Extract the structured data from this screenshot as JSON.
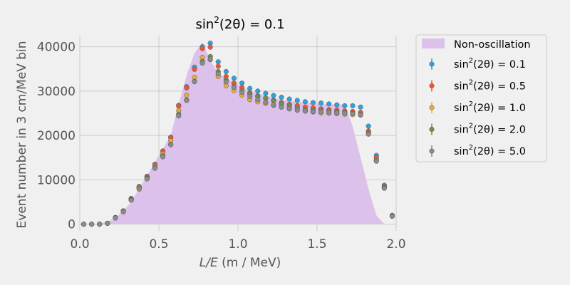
{
  "chart_data": {
    "type": "scatter",
    "title_main": "sin",
    "title_sup": "2",
    "title_rest": "(2θ) = 0.1",
    "xlabel_var": "L/E",
    "xlabel_unit": " (m / MeV)",
    "ylabel": "Event number in 3 cm/MeV bin",
    "xlim": [
      0,
      2.0
    ],
    "ylim": [
      -1500,
      42500
    ],
    "x_ticks": [
      0.0,
      0.5,
      1.0,
      1.5,
      2.0
    ],
    "x_tick_labels": [
      "0.0",
      "0.5",
      "1.0",
      "1.5",
      "2.0"
    ],
    "y_ticks": [
      0,
      10000,
      20000,
      30000,
      40000
    ],
    "y_tick_labels": [
      "0",
      "10000",
      "20000",
      "30000",
      "40000"
    ],
    "grid": true,
    "legend_position": "outside-right",
    "x": [
      0.025,
      0.075,
      0.125,
      0.175,
      0.225,
      0.275,
      0.325,
      0.375,
      0.425,
      0.475,
      0.525,
      0.575,
      0.625,
      0.675,
      0.725,
      0.775,
      0.825,
      0.875,
      0.925,
      0.975,
      1.025,
      1.075,
      1.125,
      1.175,
      1.225,
      1.275,
      1.325,
      1.375,
      1.425,
      1.475,
      1.525,
      1.575,
      1.625,
      1.675,
      1.725,
      1.775,
      1.825,
      1.875,
      1.925,
      1.975
    ],
    "fill_series": {
      "name": "Non-oscillation",
      "color": "#dcc1ea",
      "values": [
        0,
        0,
        100,
        500,
        1500,
        3000,
        5000,
        8000,
        11000,
        14000,
        17000,
        20000,
        27000,
        33500,
        38500,
        41000,
        37000,
        34000,
        33000,
        32000,
        31000,
        30000,
        29500,
        29000,
        28500,
        28000,
        27800,
        27600,
        27400,
        27200,
        27000,
        27000,
        27000,
        27000,
        22000,
        15000,
        8000,
        2000,
        0,
        0
      ]
    },
    "series": [
      {
        "name_main": "sin",
        "name_sup": "2",
        "name_rest": "(2θ) = 0.1",
        "color": "#30a2da",
        "values": [
          0,
          0,
          0,
          200,
          1500,
          3000,
          5800,
          8500,
          10800,
          13500,
          16500,
          19600,
          26800,
          31000,
          35400,
          40000,
          40800,
          36600,
          34400,
          32900,
          31800,
          30600,
          30000,
          29500,
          29000,
          28600,
          28200,
          27900,
          27600,
          27400,
          27300,
          27100,
          26900,
          26700,
          26700,
          26400,
          22100,
          15500,
          8800,
          2000
        ]
      },
      {
        "name_main": "sin",
        "name_sup": "2",
        "name_rest": "(2θ) = 0.5",
        "color": "#fc4f30",
        "values": [
          0,
          0,
          0,
          200,
          1500,
          3000,
          5700,
          8400,
          10700,
          13400,
          16400,
          19500,
          26600,
          30700,
          34900,
          39600,
          39900,
          35600,
          33300,
          31800,
          30800,
          29600,
          28900,
          28400,
          27900,
          27400,
          27000,
          26700,
          26400,
          26200,
          26000,
          25800,
          25700,
          25500,
          25400,
          25200,
          21000,
          15000,
          8500,
          1900
        ]
      },
      {
        "name_main": "sin",
        "name_sup": "2",
        "name_rest": "(2θ) = 1.0",
        "color": "#e5ae38",
        "values": [
          0,
          0,
          0,
          200,
          1400,
          2900,
          5500,
          8200,
          10400,
          13000,
          15800,
          18800,
          25600,
          29100,
          33100,
          37600,
          37100,
          33300,
          31200,
          30100,
          29100,
          28100,
          27600,
          27200,
          26800,
          26400,
          26000,
          25700,
          25500,
          25300,
          25100,
          25000,
          24900,
          24800,
          24700,
          24600,
          20500,
          14500,
          8300,
          1800
        ]
      },
      {
        "name_main": "sin",
        "name_sup": "2",
        "name_rest": "(2θ) = 2.0",
        "color": "#6d904f",
        "values": [
          0,
          0,
          0,
          200,
          1400,
          2800,
          5500,
          8000,
          10300,
          12800,
          15400,
          18000,
          24800,
          28000,
          32200,
          36700,
          37800,
          34400,
          32500,
          31000,
          30100,
          29300,
          28800,
          28400,
          27800,
          27100,
          26600,
          26200,
          25800,
          25700,
          25600,
          25500,
          25400,
          25200,
          25000,
          24800,
          20400,
          14300,
          8200,
          1800
        ]
      },
      {
        "name_main": "sin",
        "name_sup": "2",
        "name_rest": "(2θ) = 5.0",
        "color": "#8b8b8b",
        "values": [
          0,
          0,
          0,
          200,
          1400,
          2800,
          5400,
          7900,
          10200,
          12600,
          15200,
          17900,
          24400,
          27900,
          32100,
          36300,
          37200,
          33900,
          32100,
          30800,
          29700,
          28800,
          28100,
          27500,
          26900,
          26400,
          26000,
          25700,
          25500,
          25400,
          25300,
          25200,
          25100,
          25000,
          24900,
          24700,
          20300,
          14200,
          8100,
          1800
        ]
      }
    ],
    "tail_x": [
      1.925,
      1.975
    ],
    "tail_values": [
      0,
      0
    ]
  }
}
